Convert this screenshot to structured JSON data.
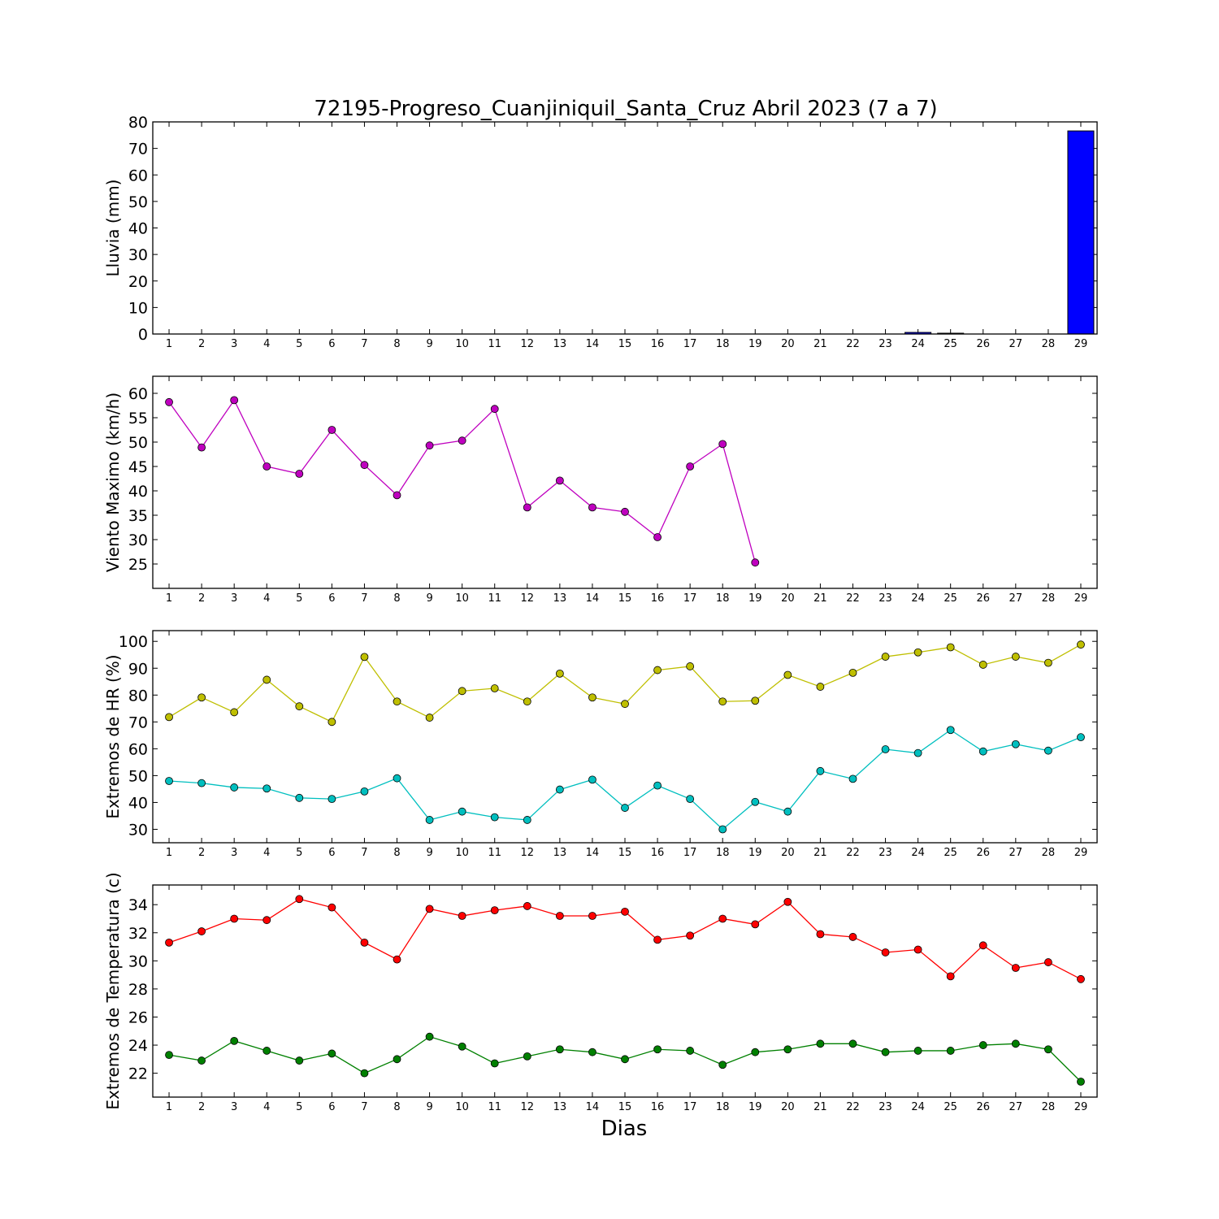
{
  "title": "72195-Progreso_Cuanjiniquil_Santa_Cruz Abril 2023  (7 a 7)",
  "xlabel": "Dias",
  "chart_data": [
    {
      "type": "bar",
      "ylabel": "Lluvia (mm)",
      "x": [
        1,
        2,
        3,
        4,
        5,
        6,
        7,
        8,
        9,
        10,
        11,
        12,
        13,
        14,
        15,
        16,
        17,
        18,
        19,
        20,
        21,
        22,
        23,
        24,
        25,
        26,
        27,
        28,
        29
      ],
      "xlim": [
        0.5,
        29.5
      ],
      "ylim": [
        0,
        80
      ],
      "yticks": [
        0,
        10,
        20,
        30,
        40,
        50,
        60,
        70,
        80
      ],
      "series": [
        {
          "color": "#0000ff",
          "values": [
            0,
            0,
            0,
            0,
            0,
            0,
            0,
            0,
            0,
            0,
            0,
            0,
            0,
            0,
            0,
            0,
            0,
            0,
            0,
            0,
            0,
            0,
            0,
            0.6,
            0.3,
            0,
            0,
            0,
            76.6
          ]
        }
      ]
    },
    {
      "type": "line",
      "ylabel": "Viento Maximo (km/h)",
      "x": [
        1,
        2,
        3,
        4,
        5,
        6,
        7,
        8,
        9,
        10,
        11,
        12,
        13,
        14,
        15,
        16,
        17,
        18,
        19,
        20,
        21,
        22,
        23,
        24,
        25,
        26,
        27,
        28,
        29
      ],
      "xlim": [
        0.5,
        29.5
      ],
      "ylim": [
        20,
        63.5
      ],
      "yticks": [
        25,
        30,
        35,
        40,
        45,
        50,
        55,
        60
      ],
      "series": [
        {
          "color": "#bf00bf",
          "values": [
            58.2,
            48.9,
            58.6,
            45.0,
            43.5,
            52.5,
            45.3,
            39.1,
            49.3,
            50.3,
            56.8,
            36.6,
            42.1,
            36.6,
            35.7,
            30.5,
            45.0,
            49.6,
            25.3,
            null,
            null,
            null,
            null,
            null,
            null,
            null,
            null,
            null,
            null
          ]
        }
      ]
    },
    {
      "type": "line",
      "ylabel": "Extremos de HR (%)",
      "x": [
        1,
        2,
        3,
        4,
        5,
        6,
        7,
        8,
        9,
        10,
        11,
        12,
        13,
        14,
        15,
        16,
        17,
        18,
        19,
        20,
        21,
        22,
        23,
        24,
        25,
        26,
        27,
        28,
        29
      ],
      "xlim": [
        0.5,
        29.5
      ],
      "ylim": [
        25,
        104
      ],
      "yticks": [
        30,
        40,
        50,
        60,
        70,
        80,
        90,
        100
      ],
      "series": [
        {
          "color": "#bfbf00",
          "values": [
            71.8,
            79.1,
            73.6,
            85.7,
            75.8,
            70.0,
            94.2,
            77.6,
            71.6,
            81.5,
            82.5,
            77.6,
            88.0,
            79.1,
            76.7,
            89.3,
            90.7,
            77.6,
            77.9,
            87.5,
            83.1,
            88.3,
            94.3,
            95.9,
            97.8,
            91.3,
            94.3,
            92.0,
            98.8
          ]
        },
        {
          "color": "#00bfbf",
          "values": [
            48.0,
            47.2,
            45.6,
            45.2,
            41.7,
            41.3,
            44.1,
            49.0,
            33.5,
            36.6,
            34.5,
            33.5,
            44.8,
            48.5,
            38.0,
            46.3,
            41.3,
            30.0,
            40.2,
            36.6,
            51.7,
            48.8,
            59.8,
            58.4,
            67.0,
            59.0,
            61.7,
            59.3,
            64.3
          ]
        }
      ]
    },
    {
      "type": "line",
      "ylabel": "Extremos de Temperatura (c)",
      "x": [
        1,
        2,
        3,
        4,
        5,
        6,
        7,
        8,
        9,
        10,
        11,
        12,
        13,
        14,
        15,
        16,
        17,
        18,
        19,
        20,
        21,
        22,
        23,
        24,
        25,
        26,
        27,
        28,
        29
      ],
      "xlim": [
        0.5,
        29.5
      ],
      "ylim": [
        20.3,
        35.4
      ],
      "yticks": [
        22,
        24,
        26,
        28,
        30,
        32,
        34
      ],
      "series": [
        {
          "color": "#ff0000",
          "values": [
            31.3,
            32.1,
            33.0,
            32.9,
            34.4,
            33.8,
            31.3,
            30.1,
            33.7,
            33.2,
            33.6,
            33.9,
            33.2,
            33.2,
            33.5,
            31.5,
            31.8,
            33.0,
            32.6,
            34.2,
            31.9,
            31.7,
            30.6,
            30.8,
            28.9,
            31.1,
            29.5,
            29.9,
            28.7
          ]
        },
        {
          "color": "#008000",
          "values": [
            23.3,
            22.9,
            24.3,
            23.6,
            22.9,
            23.4,
            22.0,
            23.0,
            24.6,
            23.9,
            22.7,
            23.2,
            23.7,
            23.5,
            23.0,
            23.7,
            23.6,
            22.6,
            23.5,
            23.7,
            24.1,
            24.1,
            23.5,
            23.6,
            23.6,
            24.0,
            24.1,
            23.7,
            21.4
          ]
        }
      ]
    }
  ]
}
